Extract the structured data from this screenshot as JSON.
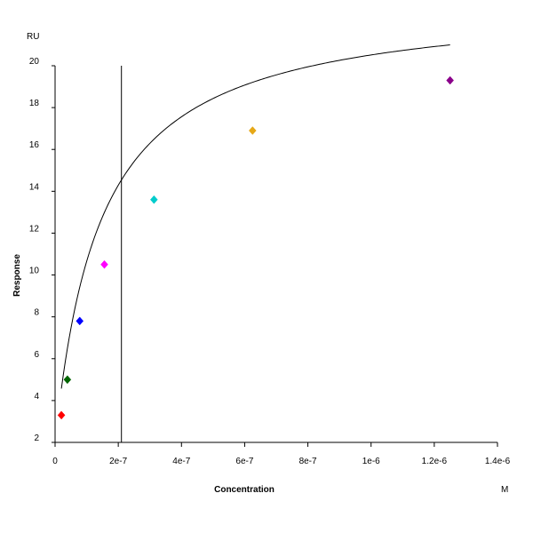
{
  "chart_data": {
    "type": "scatter",
    "title": "",
    "xlabel": "Concentration",
    "ylabel": "Response",
    "x_unit": "M",
    "y_unit": "RU",
    "xlim": [
      0,
      1.4e-06
    ],
    "ylim": [
      2,
      20
    ],
    "x_ticks": [
      {
        "value": 0,
        "label": "0"
      },
      {
        "value": 2e-07,
        "label": "2e-7"
      },
      {
        "value": 4e-07,
        "label": "4e-7"
      },
      {
        "value": 6e-07,
        "label": "6e-7"
      },
      {
        "value": 8e-07,
        "label": "8e-7"
      },
      {
        "value": 1e-06,
        "label": "1e-6"
      },
      {
        "value": 1.2e-06,
        "label": "1.2e-6"
      },
      {
        "value": 1.4e-06,
        "label": "1.4e-6"
      }
    ],
    "y_ticks": [
      {
        "value": 2,
        "label": "2"
      },
      {
        "value": 4,
        "label": "4"
      },
      {
        "value": 6,
        "label": "6"
      },
      {
        "value": 8,
        "label": "8"
      },
      {
        "value": 10,
        "label": "10"
      },
      {
        "value": 12,
        "label": "12"
      },
      {
        "value": 14,
        "label": "14"
      },
      {
        "value": 16,
        "label": "16"
      },
      {
        "value": 18,
        "label": "18"
      },
      {
        "value": 20,
        "label": "20"
      }
    ],
    "grid": false,
    "points": [
      {
        "x": 2e-08,
        "y": 3.3,
        "color": "#ff0000"
      },
      {
        "x": 3.9e-08,
        "y": 5.0,
        "color": "#006400"
      },
      {
        "x": 7.8e-08,
        "y": 7.8,
        "color": "#0000ff"
      },
      {
        "x": 1.56e-07,
        "y": 10.5,
        "color": "#ff00ff"
      },
      {
        "x": 3.13e-07,
        "y": 13.6,
        "color": "#00cccc"
      },
      {
        "x": 6.25e-07,
        "y": 16.9,
        "color": "#e6a817"
      },
      {
        "x": 1.25e-06,
        "y": 19.3,
        "color": "#8b008b"
      }
    ],
    "fit_curve": {
      "model": "steady-state affinity",
      "Rmax": 21.2,
      "KD": 1.45e-07,
      "offset": 2.0,
      "x_range": [
        2e-08,
        1.25e-06
      ],
      "color": "#000000"
    },
    "reference_line": {
      "x": 2.1e-07,
      "color": "#000000"
    }
  }
}
